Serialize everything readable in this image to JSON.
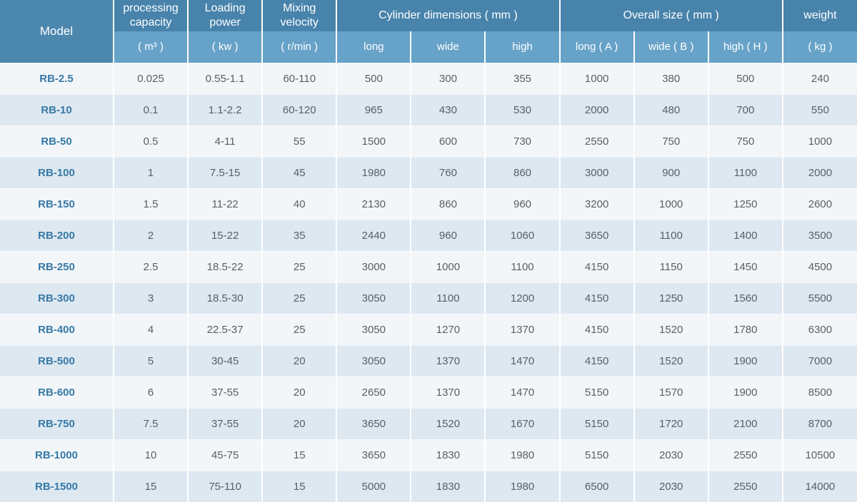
{
  "chart_data": {
    "type": "table",
    "header": {
      "model": "Model",
      "col_groups": [
        {
          "label": "processing capacity",
          "unit": "( m³ )"
        },
        {
          "label": "Loading power",
          "unit": "( kw )"
        },
        {
          "label": "Mixing velocity",
          "unit": "( r/min )"
        }
      ],
      "cylinder": {
        "label": "Cylinder dimensions ( mm )",
        "subs": [
          "long",
          "wide",
          "high"
        ]
      },
      "overall": {
        "label": "Overall size ( mm )",
        "subs": [
          "long ( A )",
          "wide ( B )",
          "high ( H )"
        ]
      },
      "weight": {
        "label": "weight",
        "unit": "( kg )"
      }
    },
    "rows": [
      {
        "model": "RB-2.5",
        "values": [
          "0.025",
          "0.55-1.1",
          "60-110",
          "500",
          "300",
          "355",
          "1000",
          "380",
          "500",
          "240"
        ]
      },
      {
        "model": "RB-10",
        "values": [
          "0.1",
          "1.1-2.2",
          "60-120",
          "965",
          "430",
          "530",
          "2000",
          "480",
          "700",
          "550"
        ]
      },
      {
        "model": "RB-50",
        "values": [
          "0.5",
          "4-11",
          "55",
          "1500",
          "600",
          "730",
          "2550",
          "750",
          "750",
          "1000"
        ]
      },
      {
        "model": "RB-100",
        "values": [
          "1",
          "7.5-15",
          "45",
          "1980",
          "760",
          "860",
          "3000",
          "900",
          "1100",
          "2000"
        ]
      },
      {
        "model": "RB-150",
        "values": [
          "1.5",
          "11-22",
          "40",
          "2130",
          "860",
          "960",
          "3200",
          "1000",
          "1250",
          "2600"
        ]
      },
      {
        "model": "RB-200",
        "values": [
          "2",
          "15-22",
          "35",
          "2440",
          "960",
          "1060",
          "3650",
          "1100",
          "1400",
          "3500"
        ]
      },
      {
        "model": "RB-250",
        "values": [
          "2.5",
          "18.5-22",
          "25",
          "3000",
          "1000",
          "1100",
          "4150",
          "1150",
          "1450",
          "4500"
        ]
      },
      {
        "model": "RB-300",
        "values": [
          "3",
          "18.5-30",
          "25",
          "3050",
          "1100",
          "1200",
          "4150",
          "1250",
          "1560",
          "5500"
        ]
      },
      {
        "model": "RB-400",
        "values": [
          "4",
          "22.5-37",
          "25",
          "3050",
          "1270",
          "1370",
          "4150",
          "1520",
          "1780",
          "6300"
        ]
      },
      {
        "model": "RB-500",
        "values": [
          "5",
          "30-45",
          "20",
          "3050",
          "1370",
          "1470",
          "4150",
          "1520",
          "1900",
          "7000"
        ]
      },
      {
        "model": "RB-600",
        "values": [
          "6",
          "37-55",
          "20",
          "2650",
          "1370",
          "1470",
          "5150",
          "1570",
          "1900",
          "8500"
        ]
      },
      {
        "model": "RB-750",
        "values": [
          "7.5",
          "37-55",
          "20",
          "3650",
          "1520",
          "1670",
          "5150",
          "1720",
          "2100",
          "8700"
        ]
      },
      {
        "model": "RB-1000",
        "values": [
          "10",
          "45-75",
          "15",
          "3650",
          "1830",
          "1980",
          "5150",
          "2030",
          "2550",
          "10500"
        ]
      },
      {
        "model": "RB-1500",
        "values": [
          "15",
          "75-110",
          "15",
          "5000",
          "1830",
          "1980",
          "6500",
          "2030",
          "2550",
          "14000"
        ]
      }
    ],
    "colors": {
      "header_dark": "#4783ab",
      "header_light": "#67a2c8",
      "header_model": "#4c87ae",
      "row_light": "#f2f6f9",
      "row_blue": "#dde8f1",
      "model_text": "#3779a6",
      "value_text": "#595f65",
      "grid_line": "#ffffff"
    }
  }
}
